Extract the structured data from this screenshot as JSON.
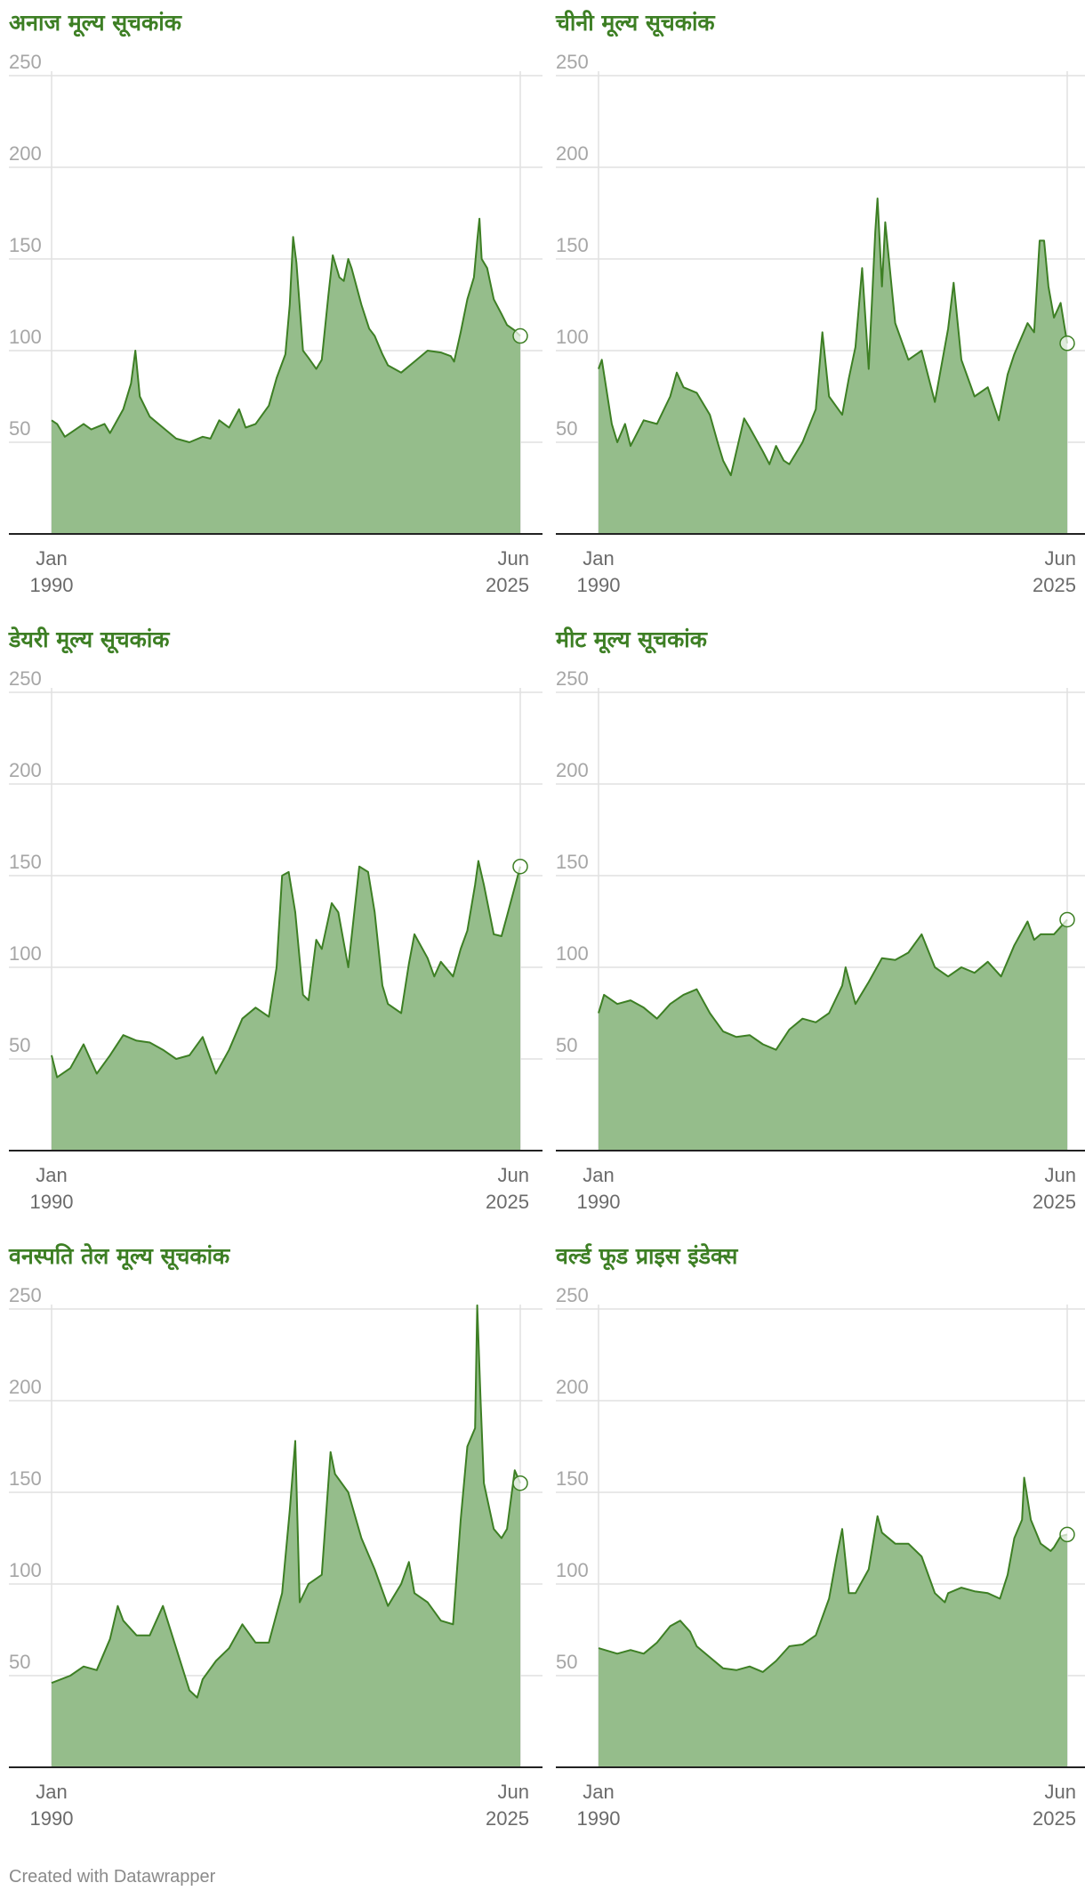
{
  "chart_data": [
    {
      "type": "area",
      "title": "अनाज मूल्य सूचकांक",
      "x_range": [
        "1990-01",
        "2025-06"
      ],
      "x_tick_labels": [
        [
          "Jan",
          "1990"
        ],
        [
          "Jun",
          "2025"
        ]
      ],
      "ylim": [
        0,
        250
      ],
      "y_ticks": [
        50,
        100,
        150,
        200,
        250
      ],
      "grid": true,
      "series_points": [
        [
          "1990-01",
          62
        ],
        [
          "1990-06",
          60
        ],
        [
          "1991-01",
          53
        ],
        [
          "1992-06",
          60
        ],
        [
          "1993-01",
          57
        ],
        [
          "1994-01",
          60
        ],
        [
          "1994-06",
          55
        ],
        [
          "1995-06",
          68
        ],
        [
          "1996-01",
          82
        ],
        [
          "1996-05",
          100
        ],
        [
          "1996-09",
          75
        ],
        [
          "1997-06",
          64
        ],
        [
          "1998-06",
          58
        ],
        [
          "1999-06",
          52
        ],
        [
          "2000-06",
          50
        ],
        [
          "2001-06",
          53
        ],
        [
          "2002-01",
          52
        ],
        [
          "2002-09",
          62
        ],
        [
          "2003-06",
          58
        ],
        [
          "2004-03",
          68
        ],
        [
          "2004-09",
          58
        ],
        [
          "2005-06",
          60
        ],
        [
          "2006-06",
          70
        ],
        [
          "2007-01",
          85
        ],
        [
          "2007-09",
          98
        ],
        [
          "2008-01",
          125
        ],
        [
          "2008-04",
          162
        ],
        [
          "2008-07",
          148
        ],
        [
          "2009-01",
          100
        ],
        [
          "2009-06",
          96
        ],
        [
          "2010-01",
          90
        ],
        [
          "2010-06",
          95
        ],
        [
          "2010-12",
          130
        ],
        [
          "2011-04",
          152
        ],
        [
          "2011-10",
          140
        ],
        [
          "2012-02",
          138
        ],
        [
          "2012-06",
          150
        ],
        [
          "2012-09",
          145
        ],
        [
          "2013-06",
          125
        ],
        [
          "2014-01",
          112
        ],
        [
          "2014-06",
          108
        ],
        [
          "2015-01",
          98
        ],
        [
          "2015-06",
          92
        ],
        [
          "2016-06",
          88
        ],
        [
          "2017-06",
          94
        ],
        [
          "2018-06",
          100
        ],
        [
          "2019-06",
          99
        ],
        [
          "2020-03",
          97
        ],
        [
          "2020-06",
          94
        ],
        [
          "2020-12",
          110
        ],
        [
          "2021-06",
          128
        ],
        [
          "2021-12",
          140
        ],
        [
          "2022-03",
          160
        ],
        [
          "2022-05",
          172
        ],
        [
          "2022-07",
          150
        ],
        [
          "2022-12",
          145
        ],
        [
          "2023-06",
          128
        ],
        [
          "2024-01",
          120
        ],
        [
          "2024-06",
          114
        ],
        [
          "2025-01",
          111
        ],
        [
          "2025-06",
          108
        ]
      ]
    },
    {
      "type": "area",
      "title": "चीनी मूल्य सूचकांक",
      "x_range": [
        "1990-01",
        "2025-06"
      ],
      "x_tick_labels": [
        [
          "Jan",
          "1990"
        ],
        [
          "Jun",
          "2025"
        ]
      ],
      "ylim": [
        0,
        250
      ],
      "y_ticks": [
        50,
        100,
        150,
        200,
        250
      ],
      "grid": true,
      "series_points": [
        [
          "1990-01",
          90
        ],
        [
          "1990-04",
          95
        ],
        [
          "1991-01",
          60
        ],
        [
          "1991-06",
          50
        ],
        [
          "1992-01",
          60
        ],
        [
          "1992-06",
          48
        ],
        [
          "1993-06",
          62
        ],
        [
          "1994-06",
          60
        ],
        [
          "1995-06",
          75
        ],
        [
          "1995-12",
          88
        ],
        [
          "1996-06",
          80
        ],
        [
          "1997-06",
          77
        ],
        [
          "1998-06",
          65
        ],
        [
          "1999-01",
          50
        ],
        [
          "1999-06",
          40
        ],
        [
          "2000-01",
          32
        ],
        [
          "2000-06",
          45
        ],
        [
          "2001-01",
          63
        ],
        [
          "2001-06",
          58
        ],
        [
          "2002-06",
          45
        ],
        [
          "2002-12",
          38
        ],
        [
          "2003-06",
          48
        ],
        [
          "2004-01",
          40
        ],
        [
          "2004-06",
          38
        ],
        [
          "2005-06",
          50
        ],
        [
          "2006-06",
          68
        ],
        [
          "2006-12",
          110
        ],
        [
          "2007-06",
          75
        ],
        [
          "2008-06",
          65
        ],
        [
          "2008-12",
          85
        ],
        [
          "2009-06",
          102
        ],
        [
          "2009-12",
          145
        ],
        [
          "2010-06",
          90
        ],
        [
          "2010-12",
          165
        ],
        [
          "2011-02",
          183
        ],
        [
          "2011-06",
          135
        ],
        [
          "2011-09",
          170
        ],
        [
          "2012-06",
          115
        ],
        [
          "2013-06",
          95
        ],
        [
          "2014-06",
          100
        ],
        [
          "2015-06",
          72
        ],
        [
          "2016-06",
          112
        ],
        [
          "2016-11",
          137
        ],
        [
          "2017-06",
          95
        ],
        [
          "2018-06",
          75
        ],
        [
          "2019-06",
          80
        ],
        [
          "2020-04",
          62
        ],
        [
          "2020-12",
          87
        ],
        [
          "2021-06",
          98
        ],
        [
          "2022-06",
          115
        ],
        [
          "2022-12",
          110
        ],
        [
          "2023-05",
          160
        ],
        [
          "2023-09",
          160
        ],
        [
          "2024-01",
          135
        ],
        [
          "2024-06",
          118
        ],
        [
          "2024-12",
          126
        ],
        [
          "2025-06",
          104
        ]
      ]
    },
    {
      "type": "area",
      "title": "डेयरी मूल्य सूचकांक",
      "x_range": [
        "1990-01",
        "2025-06"
      ],
      "x_tick_labels": [
        [
          "Jan",
          "1990"
        ],
        [
          "Jun",
          "2025"
        ]
      ],
      "ylim": [
        0,
        250
      ],
      "y_ticks": [
        50,
        100,
        150,
        200,
        250
      ],
      "grid": true,
      "series_points": [
        [
          "1990-01",
          52
        ],
        [
          "1990-06",
          40
        ],
        [
          "1991-06",
          45
        ],
        [
          "1992-06",
          58
        ],
        [
          "1993-06",
          42
        ],
        [
          "1994-06",
          52
        ],
        [
          "1995-06",
          63
        ],
        [
          "1996-06",
          60
        ],
        [
          "1997-06",
          59
        ],
        [
          "1998-06",
          55
        ],
        [
          "1999-06",
          50
        ],
        [
          "2000-06",
          52
        ],
        [
          "2001-06",
          62
        ],
        [
          "2002-06",
          42
        ],
        [
          "2003-06",
          55
        ],
        [
          "2004-06",
          72
        ],
        [
          "2005-06",
          78
        ],
        [
          "2006-06",
          73
        ],
        [
          "2007-01",
          100
        ],
        [
          "2007-06",
          150
        ],
        [
          "2007-12",
          152
        ],
        [
          "2008-06",
          130
        ],
        [
          "2009-01",
          85
        ],
        [
          "2009-06",
          82
        ],
        [
          "2010-01",
          115
        ],
        [
          "2010-06",
          110
        ],
        [
          "2011-03",
          135
        ],
        [
          "2011-09",
          130
        ],
        [
          "2012-06",
          100
        ],
        [
          "2013-04",
          155
        ],
        [
          "2013-12",
          152
        ],
        [
          "2014-06",
          130
        ],
        [
          "2015-01",
          90
        ],
        [
          "2015-06",
          80
        ],
        [
          "2016-06",
          75
        ],
        [
          "2017-01",
          102
        ],
        [
          "2017-06",
          118
        ],
        [
          "2018-06",
          105
        ],
        [
          "2018-12",
          95
        ],
        [
          "2019-06",
          103
        ],
        [
          "2020-05",
          95
        ],
        [
          "2020-12",
          110
        ],
        [
          "2021-06",
          120
        ],
        [
          "2022-01",
          145
        ],
        [
          "2022-04",
          158
        ],
        [
          "2022-09",
          145
        ],
        [
          "2023-06",
          118
        ],
        [
          "2024-01",
          117
        ],
        [
          "2024-06",
          128
        ],
        [
          "2025-06",
          155
        ]
      ]
    },
    {
      "type": "area",
      "title": "मीट मूल्य सूचकांक",
      "x_range": [
        "1990-01",
        "2025-06"
      ],
      "x_tick_labels": [
        [
          "Jan",
          "1990"
        ],
        [
          "Jun",
          "2025"
        ]
      ],
      "ylim": [
        0,
        250
      ],
      "y_ticks": [
        50,
        100,
        150,
        200,
        250
      ],
      "grid": true,
      "series_points": [
        [
          "1990-01",
          75
        ],
        [
          "1990-06",
          85
        ],
        [
          "1991-06",
          80
        ],
        [
          "1992-06",
          82
        ],
        [
          "1993-06",
          78
        ],
        [
          "1994-06",
          72
        ],
        [
          "1995-06",
          80
        ],
        [
          "1996-06",
          85
        ],
        [
          "1997-06",
          88
        ],
        [
          "1998-06",
          75
        ],
        [
          "1999-06",
          65
        ],
        [
          "2000-06",
          62
        ],
        [
          "2001-06",
          63
        ],
        [
          "2002-06",
          58
        ],
        [
          "2003-06",
          55
        ],
        [
          "2004-06",
          66
        ],
        [
          "2005-06",
          72
        ],
        [
          "2006-06",
          70
        ],
        [
          "2007-06",
          75
        ],
        [
          "2008-06",
          90
        ],
        [
          "2008-09",
          100
        ],
        [
          "2009-06",
          80
        ],
        [
          "2010-06",
          92
        ],
        [
          "2011-06",
          105
        ],
        [
          "2012-06",
          104
        ],
        [
          "2013-06",
          108
        ],
        [
          "2014-06",
          118
        ],
        [
          "2015-06",
          100
        ],
        [
          "2016-06",
          95
        ],
        [
          "2017-06",
          100
        ],
        [
          "2018-06",
          97
        ],
        [
          "2019-06",
          103
        ],
        [
          "2020-06",
          95
        ],
        [
          "2021-06",
          112
        ],
        [
          "2022-06",
          125
        ],
        [
          "2022-12",
          115
        ],
        [
          "2023-06",
          118
        ],
        [
          "2024-06",
          118
        ],
        [
          "2025-06",
          126
        ]
      ]
    },
    {
      "type": "area",
      "title": "वनस्पति तेल मूल्य सूचकांक",
      "x_range": [
        "1990-01",
        "2025-06"
      ],
      "x_tick_labels": [
        [
          "Jan",
          "1990"
        ],
        [
          "Jun",
          "2025"
        ]
      ],
      "ylim": [
        0,
        250
      ],
      "y_ticks": [
        50,
        100,
        150,
        200,
        250
      ],
      "grid": true,
      "series_points": [
        [
          "1990-01",
          46
        ],
        [
          "1991-06",
          50
        ],
        [
          "1992-06",
          55
        ],
        [
          "1993-06",
          53
        ],
        [
          "1994-06",
          70
        ],
        [
          "1995-01",
          88
        ],
        [
          "1995-06",
          80
        ],
        [
          "1996-06",
          72
        ],
        [
          "1997-06",
          72
        ],
        [
          "1998-06",
          88
        ],
        [
          "1999-06",
          65
        ],
        [
          "2000-06",
          42
        ],
        [
          "2001-01",
          38
        ],
        [
          "2001-06",
          48
        ],
        [
          "2002-06",
          58
        ],
        [
          "2003-06",
          65
        ],
        [
          "2004-06",
          78
        ],
        [
          "2005-06",
          68
        ],
        [
          "2006-06",
          68
        ],
        [
          "2007-06",
          95
        ],
        [
          "2008-01",
          140
        ],
        [
          "2008-06",
          178
        ],
        [
          "2008-10",
          90
        ],
        [
          "2009-06",
          100
        ],
        [
          "2010-06",
          105
        ],
        [
          "2011-02",
          172
        ],
        [
          "2011-06",
          160
        ],
        [
          "2012-06",
          150
        ],
        [
          "2013-06",
          125
        ],
        [
          "2014-06",
          108
        ],
        [
          "2015-06",
          88
        ],
        [
          "2016-06",
          100
        ],
        [
          "2017-01",
          112
        ],
        [
          "2017-06",
          95
        ],
        [
          "2018-06",
          90
        ],
        [
          "2019-06",
          80
        ],
        [
          "2020-05",
          78
        ],
        [
          "2020-12",
          135
        ],
        [
          "2021-06",
          175
        ],
        [
          "2022-01",
          185
        ],
        [
          "2022-03",
          252
        ],
        [
          "2022-06",
          200
        ],
        [
          "2022-09",
          155
        ],
        [
          "2023-06",
          130
        ],
        [
          "2024-01",
          125
        ],
        [
          "2024-06",
          130
        ],
        [
          "2025-01",
          162
        ],
        [
          "2025-06",
          155
        ]
      ]
    },
    {
      "type": "area",
      "title": "वर्ल्ड फूड प्राइस इंडेक्स",
      "x_range": [
        "1990-01",
        "2025-06"
      ],
      "x_tick_labels": [
        [
          "Jan",
          "1990"
        ],
        [
          "Jun",
          "2025"
        ]
      ],
      "ylim": [
        0,
        250
      ],
      "y_ticks": [
        50,
        100,
        150,
        200,
        250
      ],
      "grid": true,
      "series_points": [
        [
          "1990-01",
          65
        ],
        [
          "1991-06",
          62
        ],
        [
          "1992-06",
          64
        ],
        [
          "1993-06",
          62
        ],
        [
          "1994-06",
          68
        ],
        [
          "1995-06",
          77
        ],
        [
          "1996-03",
          80
        ],
        [
          "1996-12",
          74
        ],
        [
          "1997-06",
          66
        ],
        [
          "1998-06",
          60
        ],
        [
          "1999-06",
          54
        ],
        [
          "2000-06",
          53
        ],
        [
          "2001-06",
          55
        ],
        [
          "2002-06",
          52
        ],
        [
          "2003-06",
          58
        ],
        [
          "2004-06",
          66
        ],
        [
          "2005-06",
          67
        ],
        [
          "2006-06",
          72
        ],
        [
          "2007-06",
          92
        ],
        [
          "2008-01",
          115
        ],
        [
          "2008-06",
          130
        ],
        [
          "2008-12",
          95
        ],
        [
          "2009-06",
          95
        ],
        [
          "2010-06",
          108
        ],
        [
          "2011-02",
          137
        ],
        [
          "2011-06",
          128
        ],
        [
          "2012-06",
          122
        ],
        [
          "2013-06",
          122
        ],
        [
          "2014-06",
          115
        ],
        [
          "2015-06",
          95
        ],
        [
          "2016-03",
          90
        ],
        [
          "2016-06",
          95
        ],
        [
          "2017-06",
          98
        ],
        [
          "2018-06",
          96
        ],
        [
          "2019-06",
          95
        ],
        [
          "2020-05",
          92
        ],
        [
          "2020-12",
          105
        ],
        [
          "2021-06",
          125
        ],
        [
          "2022-01",
          135
        ],
        [
          "2022-03",
          158
        ],
        [
          "2022-09",
          135
        ],
        [
          "2023-06",
          122
        ],
        [
          "2024-03",
          118
        ],
        [
          "2024-06",
          120
        ],
        [
          "2024-12",
          126
        ],
        [
          "2025-06",
          127
        ]
      ]
    }
  ],
  "footer": {
    "text": "Created with Datawrapper"
  },
  "colors": {
    "title": "#3d7f24",
    "line": "#3d7f24",
    "area": "#95bd8b",
    "grid": "#e1e1e1",
    "axis_text": "#a6a6a6",
    "x_label_text": "#6b6b6b",
    "baseline": "#222222"
  }
}
